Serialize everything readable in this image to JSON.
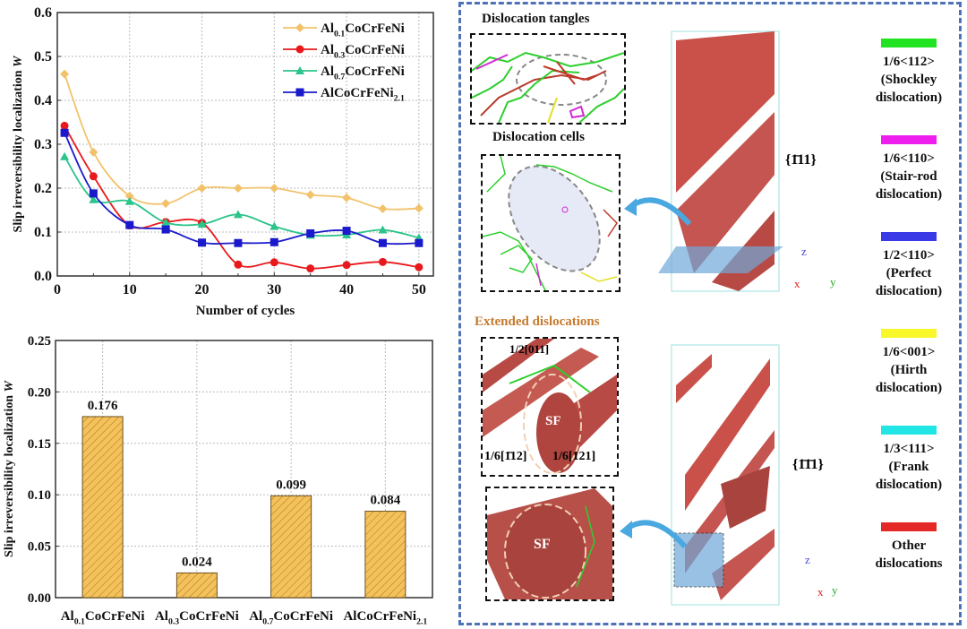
{
  "chart_data": [
    {
      "type": "line",
      "title": "",
      "xlabel": "Number of cycles",
      "ylabel": "Slip irreversibility localization W",
      "xlim": [
        0,
        52
      ],
      "ylim": [
        0,
        0.6
      ],
      "xticks": [
        "0",
        "10",
        "20",
        "30",
        "40",
        "50"
      ],
      "yticks": [
        "0.0",
        "0.1",
        "0.2",
        "0.3",
        "0.4",
        "0.5",
        "0.6"
      ],
      "grid": true,
      "legend_position": "top-right",
      "x": [
        1,
        5,
        10,
        15,
        20,
        25,
        30,
        35,
        40,
        45,
        50
      ],
      "series": [
        {
          "name": "Al0.1CoCrFeNi",
          "label_main": "Al",
          "label_sub": "0.1",
          "label_rest": "CoCrFeNi",
          "label_sub2": "",
          "color": "#f2c26b",
          "marker": "diamond",
          "values": [
            0.46,
            0.282,
            0.182,
            0.165,
            0.2,
            0.2,
            0.2,
            0.185,
            0.178,
            0.153,
            0.154
          ]
        },
        {
          "name": "Al0.3CoCrFeNi",
          "label_main": "Al",
          "label_sub": "0.3",
          "label_rest": "CoCrFeNi",
          "label_sub2": "",
          "color": "#e8191c",
          "marker": "circle",
          "values": [
            0.342,
            0.227,
            0.115,
            0.123,
            0.121,
            0.026,
            0.031,
            0.017,
            0.025,
            0.032,
            0.02
          ]
        },
        {
          "name": "Al0.7CoCrFeNi",
          "label_main": "Al",
          "label_sub": "0.7",
          "label_rest": "CoCrFeNi",
          "label_sub2": "",
          "color": "#2bc48a",
          "marker": "triangle",
          "values": [
            0.272,
            0.174,
            0.17,
            0.122,
            0.118,
            0.14,
            0.113,
            0.093,
            0.094,
            0.105,
            0.087
          ]
        },
        {
          "name": "AlCoCrFeNi2.1",
          "label_main": "AlCoCrFeNi",
          "label_sub": "2.1",
          "label_rest": "",
          "label_sub2": "",
          "color": "#1a1acc",
          "marker": "square",
          "values": [
            0.326,
            0.188,
            0.116,
            0.106,
            0.076,
            0.075,
            0.077,
            0.097,
            0.103,
            0.075,
            0.075
          ]
        }
      ]
    },
    {
      "type": "bar",
      "title": "",
      "xlabel": "",
      "ylabel": "Slip irreversibility localization W",
      "ylim": [
        0,
        0.25
      ],
      "yticks": [
        "0.00",
        "0.05",
        "0.10",
        "0.15",
        "0.20",
        "0.25"
      ],
      "grid": true,
      "bar_color": "#f5c15a",
      "bar_hatch": "diagonal",
      "categories": [
        {
          "main": "Al",
          "sub": "0.1",
          "rest": "CoCrFeNi"
        },
        {
          "main": "Al",
          "sub": "0.3",
          "rest": "CoCrFeNi"
        },
        {
          "main": "Al",
          "sub": "0.7",
          "rest": "CoCrFeNi"
        },
        {
          "main": "AlCoCrFeNi",
          "sub": "2.1",
          "rest": ""
        }
      ],
      "values": [
        0.176,
        0.024,
        0.099,
        0.084
      ],
      "data_labels": [
        "0.176",
        "0.024",
        "0.099",
        "0.084"
      ]
    }
  ],
  "right_panel": {
    "tangles_title": "Dislocation tangles",
    "cells_title": "Dislocation cells",
    "extended_title": "Extended dislocations",
    "extended_color": "#c67a2e",
    "plane_label_top": "{1̄11}",
    "plane_label_bottom": "{1̄1̄1}",
    "sf_label": "SF",
    "burgers_top": "1/2[011]",
    "burgers_left": "1/6[1̄12]",
    "burgers_right": "1/6[121]",
    "axes": {
      "z": "z",
      "x": "x",
      "y": "y"
    },
    "legend": [
      {
        "color": "#22e322",
        "text": "1/6<112>\n(Shockley\ndislocation)"
      },
      {
        "color": "#ee1fee",
        "text": "1/6<110>\n(Stair-rod\ndislocation)"
      },
      {
        "color": "#3a3ae6",
        "text": "1/2<110>\n(Perfect\ndislocation)"
      },
      {
        "color": "#f7f72a",
        "text": "1/6<001>\n(Hirth\ndislocation)"
      },
      {
        "color": "#22e6e6",
        "text": "1/3<111>\n(Frank\ndislocation)"
      },
      {
        "color": "#e42828",
        "text": "Other\ndislocations"
      }
    ]
  }
}
